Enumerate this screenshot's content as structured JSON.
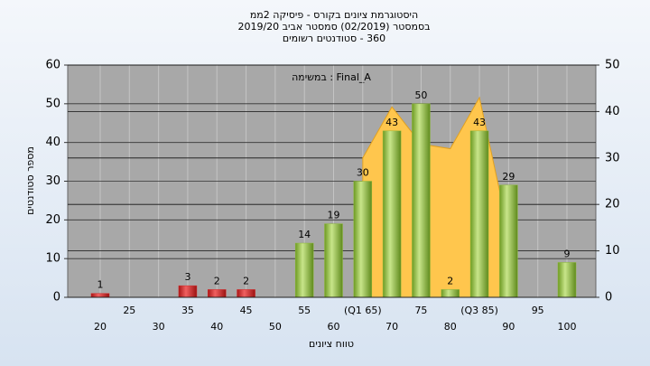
{
  "chart_data": {
    "type": "bar",
    "title": "היסטוגרמת ציונים בקורס - פיסיקה 2ממ",
    "subtitle": "בסמסטר (02/2019) סמסטר אביב 2019/20",
    "subtitle2": "360 - סטודנטים רשומים",
    "annotation": "Final_A : במשימה",
    "x_label": "טווח ציונים",
    "y_label": "מספר סטודנטים",
    "categories": [
      "20",
      "25",
      "30",
      "35",
      "40",
      "45",
      "50",
      "55",
      "60",
      "(Q1 65)",
      "70",
      "75",
      "80",
      "(Q3 85)",
      "90",
      "95",
      "100"
    ],
    "series": [
      {
        "type": "bar",
        "values": [
          1,
          0,
          0,
          3,
          2,
          2,
          0,
          14,
          19,
          30,
          43,
          50,
          2,
          43,
          29,
          0,
          9
        ],
        "colors": [
          "#d42a2a",
          "#d42a2a",
          "#d42a2a",
          "#d42a2a",
          "#d42a2a",
          "#d42a2a",
          "#d42a2a",
          "#8db83a",
          "#8db83a",
          "#8db83a",
          "#8db83a",
          "#8db83a",
          "#8db83a",
          "#8db83a",
          "#8db83a",
          "#8db83a",
          "#8db83a"
        ]
      },
      {
        "type": "area",
        "axis": "y2",
        "color": "#ffc64d",
        "values": [
          null,
          null,
          null,
          null,
          null,
          null,
          null,
          null,
          null,
          30,
          41,
          33,
          32,
          43,
          14,
          null,
          null
        ]
      }
    ],
    "ylim": [
      0,
      60
    ],
    "yticks": [
      0,
      10,
      20,
      30,
      40,
      50,
      60
    ],
    "y2lim": [
      0,
      50
    ],
    "y2ticks": [
      0,
      10,
      20,
      30,
      40,
      50
    ],
    "grid": true
  }
}
